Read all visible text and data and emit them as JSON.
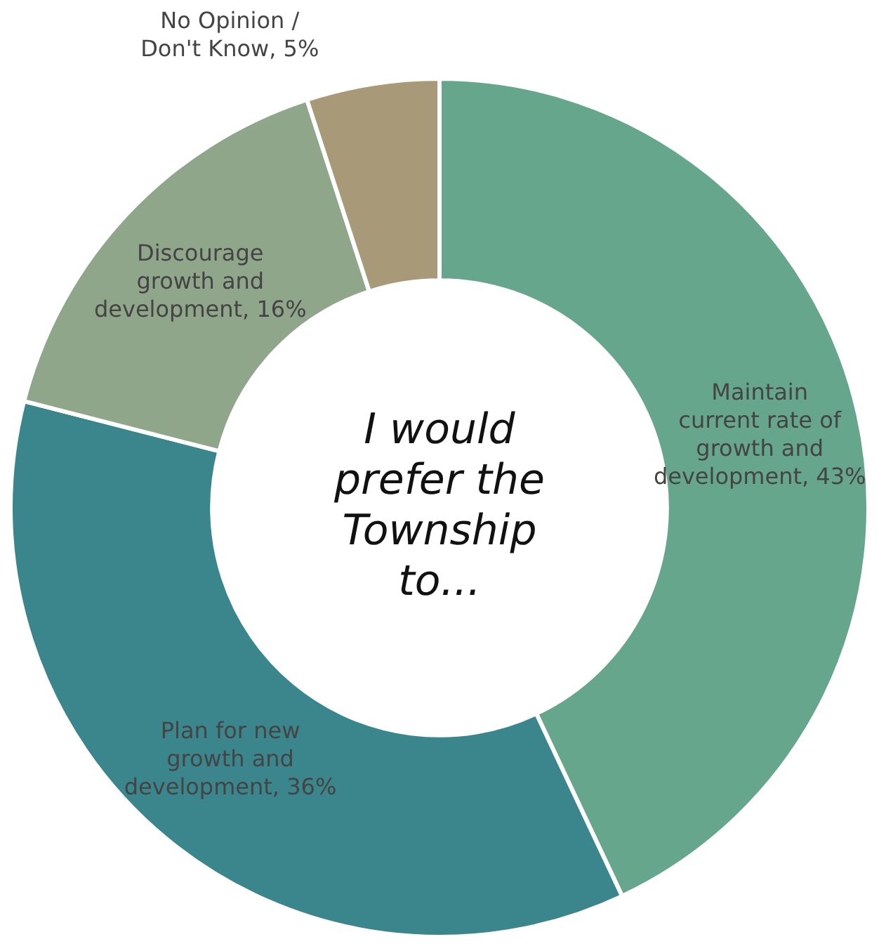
{
  "chart_data": {
    "type": "donut",
    "title": "I would prefer the Township to...",
    "categories": [
      "Maintain current rate of growth and development",
      "Plan for new growth and development",
      "Discourage growth and development",
      "No Opinion / Don't Know"
    ],
    "values": [
      43,
      36,
      16,
      5
    ],
    "value_labels": [
      "43%",
      "36%",
      "16%",
      "5%"
    ],
    "colors": [
      "#66a68c",
      "#3a868c",
      "#8fa68b",
      "#a89a78"
    ],
    "legend": false
  }
}
